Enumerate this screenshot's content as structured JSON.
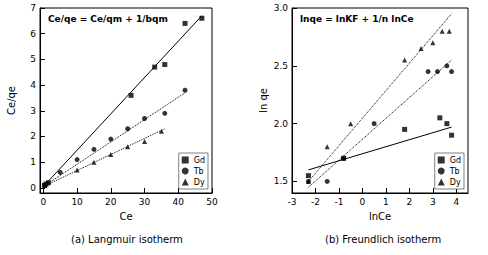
{
  "chart_data": [
    {
      "type": "scatter",
      "title": "(a) Langmuir isotherm",
      "annotation": "Ce/qe = Ce/qm + 1/bqm",
      "x_label": "Ce",
      "y_label": "Ce/qe",
      "xlim": [
        -1,
        50
      ],
      "xticks": [
        0,
        10,
        20,
        30,
        40,
        50
      ],
      "ylim": [
        -0.2,
        7
      ],
      "yticks": [
        0,
        1,
        2,
        3,
        4,
        5,
        6,
        7
      ],
      "legend": "lower right",
      "series": [
        {
          "name": "Gd",
          "color": "#000000",
          "marker": "square",
          "line_style": "solid",
          "values": [
            [
              0.3,
              0.1
            ],
            [
              0.8,
              0.15
            ],
            [
              1.5,
              0.2
            ],
            [
              26,
              3.6
            ],
            [
              33,
              4.7
            ],
            [
              36,
              4.8
            ],
            [
              42,
              6.4
            ],
            [
              47,
              6.6
            ]
          ],
          "fit": [
            [
              0,
              0.05
            ],
            [
              47,
              6.7
            ]
          ]
        },
        {
          "name": "Tb",
          "color": "#000000",
          "marker": "circle",
          "line_style": "dotted",
          "values": [
            [
              0.5,
              0.1
            ],
            [
              5,
              0.6
            ],
            [
              10,
              1.1
            ],
            [
              15,
              1.5
            ],
            [
              20,
              1.9
            ],
            [
              25,
              2.3
            ],
            [
              30,
              2.7
            ],
            [
              36,
              2.9
            ],
            [
              42,
              3.8
            ]
          ],
          "fit": [
            [
              0,
              0.05
            ],
            [
              42,
              3.7
            ]
          ]
        },
        {
          "name": "Dy",
          "color": "#000000",
          "marker": "triangle",
          "line_style": "dotted",
          "values": [
            [
              0.5,
              0.1
            ],
            [
              10,
              0.7
            ],
            [
              15,
              1.0
            ],
            [
              20,
              1.3
            ],
            [
              25,
              1.6
            ],
            [
              30,
              1.8
            ],
            [
              35,
              2.2
            ]
          ],
          "fit": [
            [
              0,
              0.05
            ],
            [
              36,
              2.3
            ]
          ]
        }
      ]
    },
    {
      "type": "scatter",
      "title": "(b) Freundlich isotherm",
      "annotation": "lnqe = lnKF + 1/n lnCe",
      "x_label": "lnCe",
      "y_label": "ln qe",
      "xlim": [
        -3,
        4.5
      ],
      "xticks": [
        -3,
        -2,
        -1,
        0,
        1,
        2,
        3,
        4
      ],
      "ylim": [
        1.4,
        3.0
      ],
      "yticks": [
        1.5,
        {
          "value": 2,
          "label": "2.0"
        },
        2.5,
        {
          "value": 3,
          "label": "3.0"
        }
      ],
      "legend": "lower right",
      "series": [
        {
          "name": "Gd",
          "color": "#000000",
          "marker": "square",
          "line_style": "solid",
          "values": [
            [
              -2.3,
              1.55
            ],
            [
              -0.8,
              1.7
            ],
            [
              1.8,
              1.95
            ],
            [
              3.3,
              2.05
            ],
            [
              3.6,
              2.0
            ],
            [
              3.8,
              1.9
            ]
          ],
          "fit": [
            [
              -2.3,
              1.6
            ],
            [
              3.8,
              1.97
            ]
          ]
        },
        {
          "name": "Tb",
          "color": "#000000",
          "marker": "circle",
          "line_style": "dotted",
          "values": [
            [
              -2.3,
              1.5
            ],
            [
              -1.5,
              1.5
            ],
            [
              -0.8,
              1.7
            ],
            [
              0.5,
              2.0
            ],
            [
              2.8,
              2.45
            ],
            [
              3.2,
              2.45
            ],
            [
              3.6,
              2.5
            ],
            [
              3.8,
              2.45
            ]
          ],
          "fit": [
            [
              -2.3,
              1.45
            ],
            [
              3.8,
              2.55
            ]
          ]
        },
        {
          "name": "Dy",
          "color": "#000000",
          "marker": "triangle",
          "line_style": "dotted",
          "values": [
            [
              -2.3,
              1.5
            ],
            [
              -1.5,
              1.8
            ],
            [
              -0.5,
              2.0
            ],
            [
              1.8,
              2.55
            ],
            [
              2.5,
              2.65
            ],
            [
              3.0,
              2.7
            ],
            [
              3.4,
              2.8
            ],
            [
              3.7,
              2.8
            ]
          ],
          "fit": [
            [
              -2.3,
              1.5
            ],
            [
              3.8,
              2.95
            ]
          ]
        }
      ]
    }
  ]
}
